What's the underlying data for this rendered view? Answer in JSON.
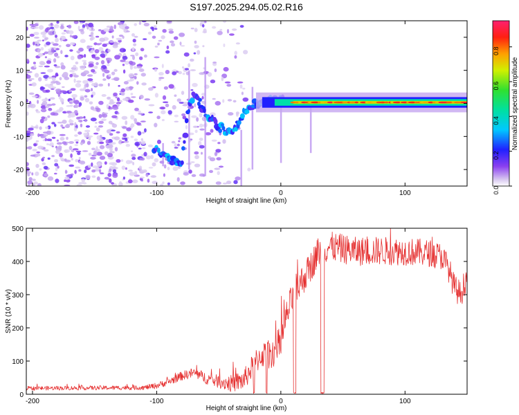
{
  "title": "S197.2025.294.05.02.R16",
  "chart_data": [
    {
      "type": "heatmap",
      "xlabel": "Height of straight line (km)",
      "ylabel": "Frequency (Hz)",
      "xlim": [
        -205,
        150
      ],
      "ylim": [
        -25,
        25
      ],
      "x_ticks": [
        -200,
        -100,
        0,
        100
      ],
      "y_ticks": [
        -20,
        -10,
        0,
        10,
        20
      ],
      "colorbar": {
        "label": "Normalized spectral amplitude",
        "range": [
          0,
          0.95
        ],
        "ticks": [
          0.0,
          0.2,
          0.4,
          0.6,
          0.8
        ],
        "tick_labels": [
          "0.0",
          "0.2",
          "0.4",
          "0.6",
          "0.8"
        ],
        "colormap": "white-purple-blue-cyan-green-yellow-red-magenta"
      },
      "features": {
        "noise_region_x": [
          -205,
          -25
        ],
        "ridge": [
          [
            -100,
            -14
          ],
          [
            -90,
            -17
          ],
          [
            -80,
            -19
          ],
          [
            -75,
            -3
          ],
          [
            -70,
            3
          ],
          [
            -60,
            -3
          ],
          [
            -50,
            -7
          ],
          [
            -40,
            -9
          ],
          [
            -30,
            -3
          ],
          [
            -20,
            0
          ],
          [
            -10,
            1
          ],
          [
            0,
            1
          ],
          [
            10,
            0
          ],
          [
            150,
            0.5
          ]
        ],
        "strong_band_x": [
          10,
          150
        ],
        "strong_band_frequency": 0.3
      }
    },
    {
      "type": "line",
      "xlabel": "Height of straight line (km)",
      "ylabel": "SNR (10 * v/v)",
      "xlim": [
        -205,
        150
      ],
      "ylim": [
        0,
        500
      ],
      "x_ticks": [
        -200,
        -100,
        0,
        100
      ],
      "y_ticks": [
        0,
        100,
        200,
        300,
        400,
        500
      ],
      "color": "#e53030",
      "series_profile": [
        [
          -205,
          18
        ],
        [
          -110,
          20
        ],
        [
          -100,
          26
        ],
        [
          -90,
          38
        ],
        [
          -80,
          55
        ],
        [
          -70,
          65
        ],
        [
          -60,
          48
        ],
        [
          -50,
          38
        ],
        [
          -40,
          32
        ],
        [
          -30,
          42
        ],
        [
          -25,
          70
        ],
        [
          -20,
          100
        ],
        [
          -15,
          120
        ],
        [
          -10,
          120
        ],
        [
          -5,
          130
        ],
        [
          0,
          160
        ],
        [
          5,
          240
        ],
        [
          10,
          300
        ],
        [
          15,
          330
        ],
        [
          20,
          360
        ],
        [
          25,
          390
        ],
        [
          30,
          430
        ],
        [
          40,
          445
        ],
        [
          60,
          430
        ],
        [
          80,
          432
        ],
        [
          100,
          430
        ],
        [
          120,
          425
        ],
        [
          130,
          415
        ],
        [
          135,
          380
        ],
        [
          140,
          320
        ],
        [
          145,
          300
        ],
        [
          150,
          360
        ]
      ],
      "dropouts_x": [
        [
          -22,
          -21
        ],
        [
          -12,
          -11
        ],
        [
          10,
          12
        ],
        [
          32,
          35
        ]
      ],
      "noise_amplitude": [
        [
          -205,
          6
        ],
        [
          -110,
          7
        ],
        [
          -50,
          20
        ],
        [
          0,
          50
        ],
        [
          40,
          45
        ],
        [
          150,
          40
        ]
      ]
    }
  ]
}
